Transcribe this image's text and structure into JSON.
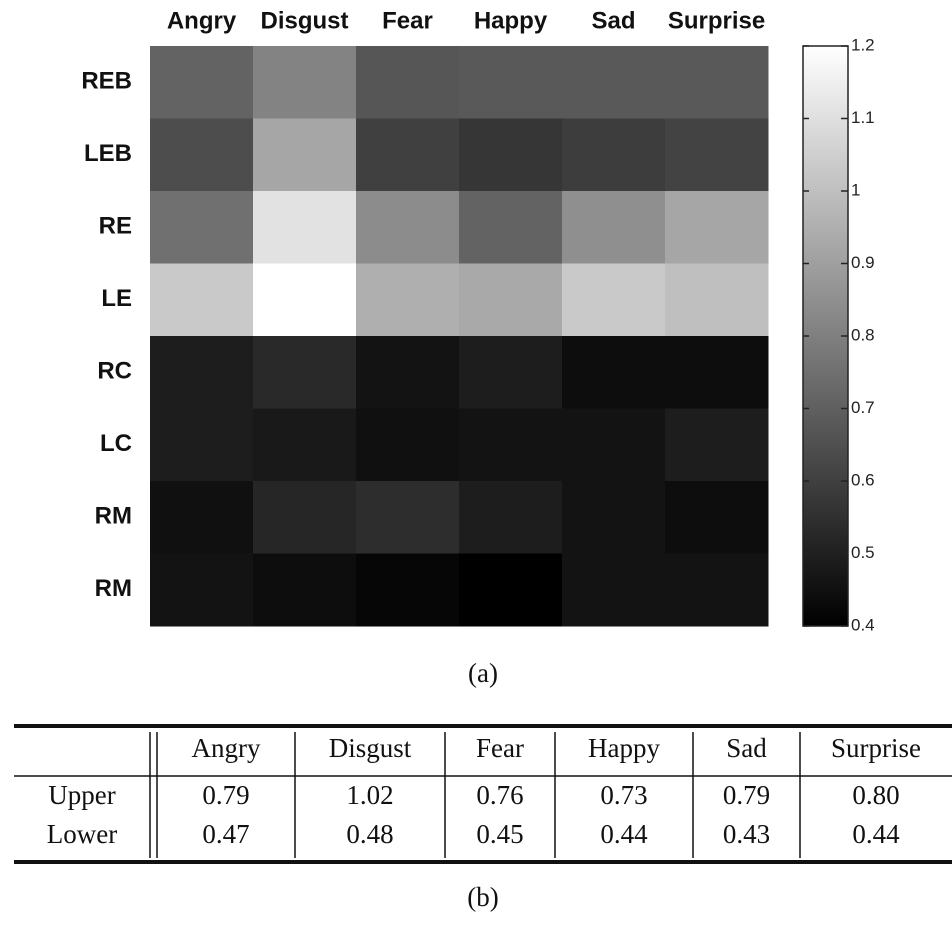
{
  "chart_data": {
    "type": "heatmap",
    "x": [
      "Angry",
      "Disgust",
      "Fear",
      "Happy",
      "Sad",
      "Surprise"
    ],
    "y": [
      "REB",
      "LEB",
      "RE",
      "LE",
      "RC",
      "LC",
      "RM",
      "RM"
    ],
    "values": [
      [
        0.71,
        0.81,
        0.67,
        0.68,
        0.68,
        0.68
      ],
      [
        0.64,
        0.92,
        0.6,
        0.57,
        0.59,
        0.61
      ],
      [
        0.75,
        1.11,
        0.84,
        0.71,
        0.85,
        0.92
      ],
      [
        1.03,
        1.2,
        0.95,
        0.93,
        1.03,
        1.0
      ],
      [
        0.49,
        0.53,
        0.46,
        0.49,
        0.44,
        0.44
      ],
      [
        0.49,
        0.48,
        0.45,
        0.46,
        0.46,
        0.49
      ],
      [
        0.45,
        0.52,
        0.54,
        0.49,
        0.46,
        0.44
      ],
      [
        0.46,
        0.44,
        0.42,
        0.4,
        0.46,
        0.46
      ]
    ],
    "clim": [
      0.4,
      1.2
    ],
    "cticks": [
      0.4,
      0.5,
      0.6,
      0.7,
      0.8,
      0.9,
      1,
      1.1,
      1.2
    ]
  },
  "caption_a": "(a)",
  "table": {
    "columns": [
      "Angry",
      "Disgust",
      "Fear",
      "Happy",
      "Sad",
      "Surprise"
    ],
    "rows": [
      [
        "Upper",
        "0.79",
        "1.02",
        "0.76",
        "0.73",
        "0.79",
        "0.80"
      ],
      [
        "Lower",
        "0.47",
        "0.48",
        "0.45",
        "0.44",
        "0.43",
        "0.44"
      ]
    ]
  },
  "caption_b": "(b)"
}
